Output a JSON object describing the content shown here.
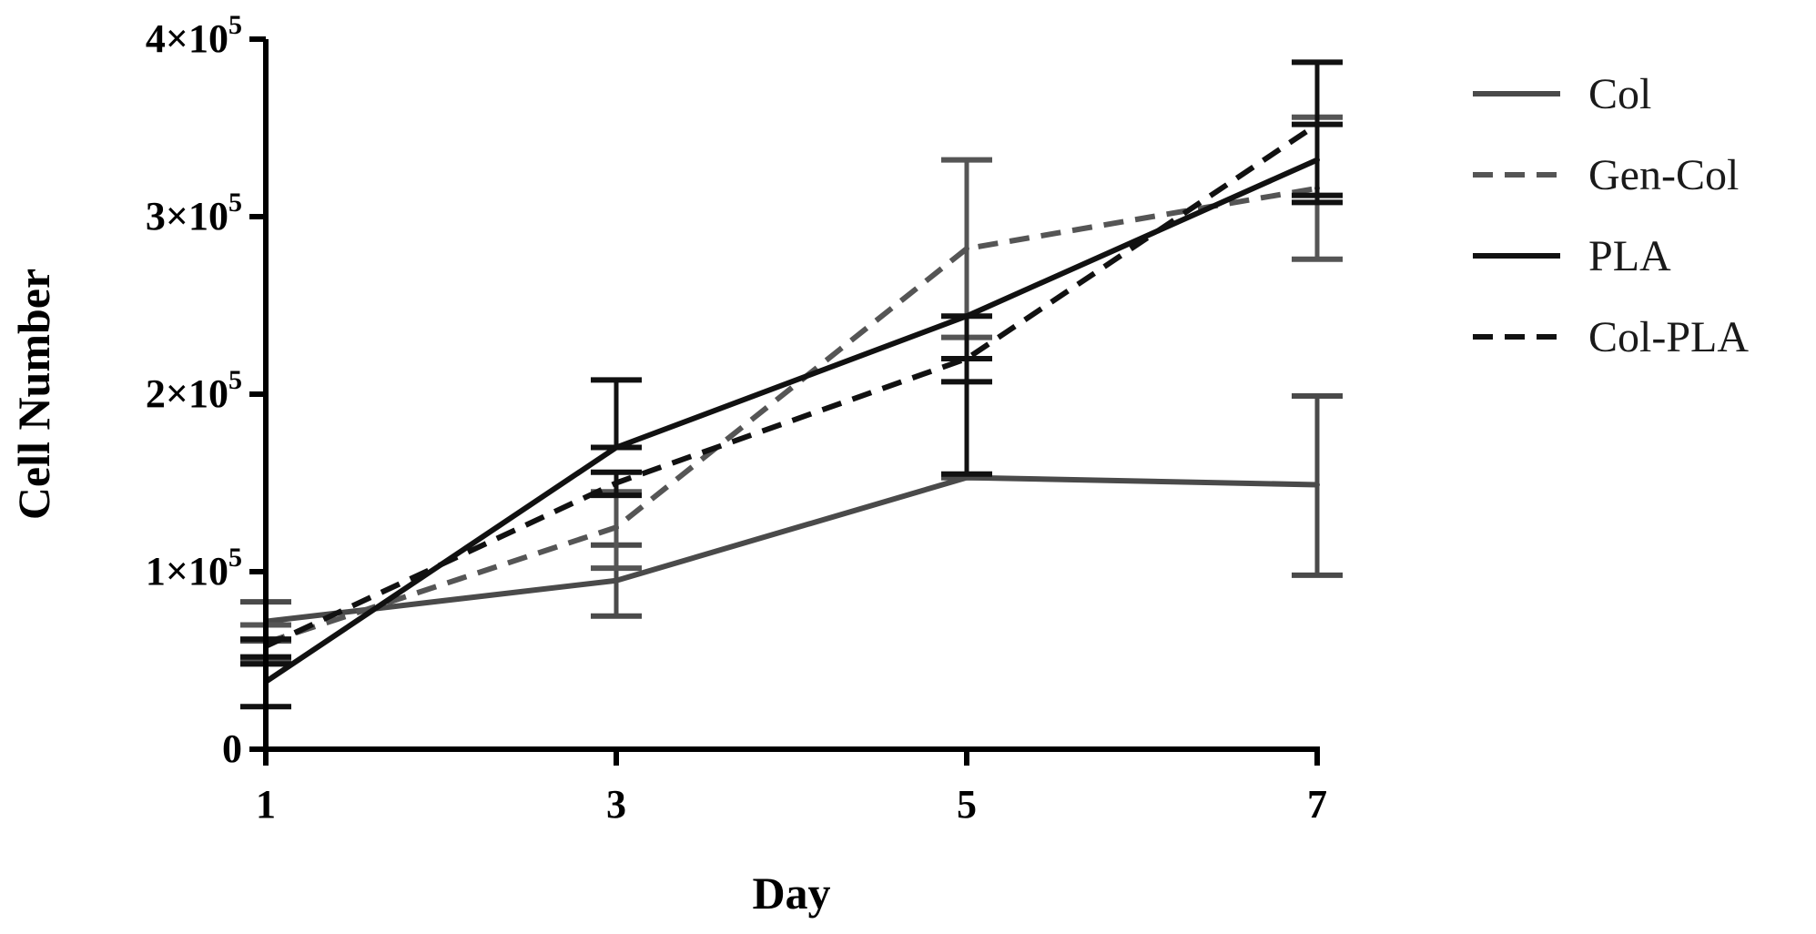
{
  "chart_data": {
    "type": "line",
    "title": "",
    "xlabel": "Day",
    "ylabel": "Cell Number",
    "x": [
      1,
      3,
      5,
      7
    ],
    "xticks": [
      1,
      3,
      5,
      7
    ],
    "xtick_labels": [
      "1",
      "3",
      "5",
      "7"
    ],
    "xlim": [
      1,
      7
    ],
    "ylim": [
      0,
      400000
    ],
    "yticks": [
      0,
      100000,
      200000,
      300000,
      400000
    ],
    "ytick_labels": [
      {
        "base": "0",
        "exp": ""
      },
      {
        "base": "1×10",
        "exp": "5"
      },
      {
        "base": "2×10",
        "exp": "5"
      },
      {
        "base": "3×10",
        "exp": "5"
      },
      {
        "base": "4×10",
        "exp": "5"
      }
    ],
    "grid": false,
    "legend_position": "right",
    "series": [
      {
        "name": "Col",
        "style": "solid",
        "color": "#4a4a4a",
        "values": [
          72000,
          95000,
          153000,
          149000
        ],
        "err_upper": [
          83000,
          115000,
          153000,
          199000
        ],
        "err_lower": [
          61000,
          75000,
          153000,
          98000
        ]
      },
      {
        "name": "Gen-Col",
        "style": "dashed",
        "color": "#555555",
        "values": [
          60000,
          125000,
          282000,
          316000
        ],
        "err_upper": [
          70000,
          145000,
          332000,
          356000
        ],
        "err_lower": [
          50000,
          102000,
          232000,
          276000
        ]
      },
      {
        "name": "PLA",
        "style": "solid",
        "color": "#111111",
        "values": [
          38000,
          170000,
          244000,
          332000
        ],
        "err_upper": [
          48000,
          208000,
          244000,
          387000
        ],
        "err_lower": [
          24000,
          170000,
          155000,
          312000
        ]
      },
      {
        "name": "Col-PLA",
        "style": "dashed",
        "color": "#111111",
        "values": [
          58000,
          150000,
          220000,
          352000
        ],
        "err_upper": [
          62000,
          156000,
          220000,
          352000
        ],
        "err_lower": [
          52000,
          143000,
          207000,
          308000
        ]
      }
    ]
  }
}
